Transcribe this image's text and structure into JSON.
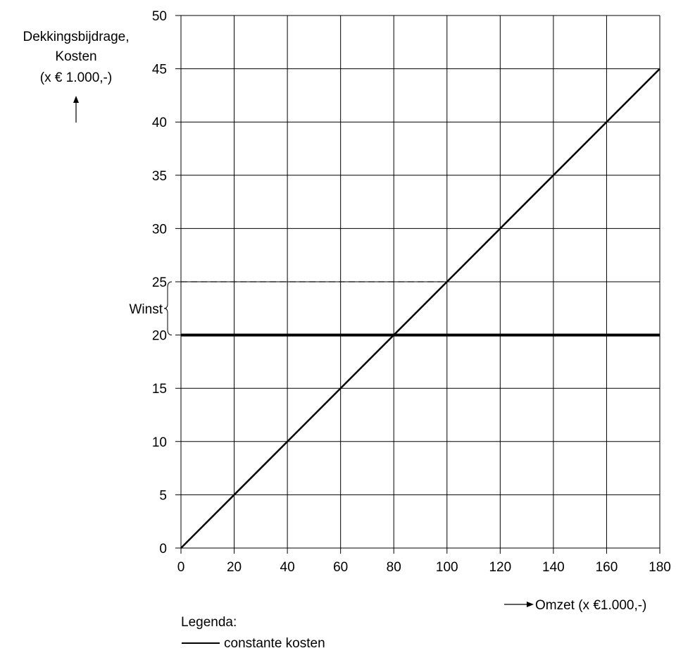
{
  "chart_data": {
    "type": "line",
    "ylabel_lines": [
      "Dekkingsbijdrage,",
      "Kosten",
      "(x € 1.000,-)"
    ],
    "xlabel": "Omzet (x €1.000,-)",
    "x_ticks": [
      0,
      20,
      40,
      60,
      80,
      100,
      120,
      140,
      160,
      180
    ],
    "y_ticks": [
      0,
      5,
      10,
      15,
      20,
      25,
      30,
      35,
      40,
      45,
      50
    ],
    "xlim": [
      0,
      180
    ],
    "ylim": [
      0,
      50
    ],
    "grid": true,
    "series": [
      {
        "name": "",
        "style": "solid",
        "points": [
          [
            0,
            0
          ],
          [
            180,
            45
          ]
        ]
      },
      {
        "name": "constante kosten",
        "style": "thick",
        "points": [
          [
            0,
            20
          ],
          [
            180,
            20
          ]
        ]
      },
      {
        "name": "",
        "style": "dashed",
        "points": [
          [
            0,
            25
          ],
          [
            100,
            25
          ]
        ]
      }
    ],
    "annotation": {
      "text": "Winst",
      "y_range": [
        20,
        25
      ]
    },
    "legend_title": "Legenda:",
    "legend_entries": [
      {
        "label": "constante kosten",
        "style": "thick"
      }
    ],
    "legend_position": "bottom-left"
  }
}
